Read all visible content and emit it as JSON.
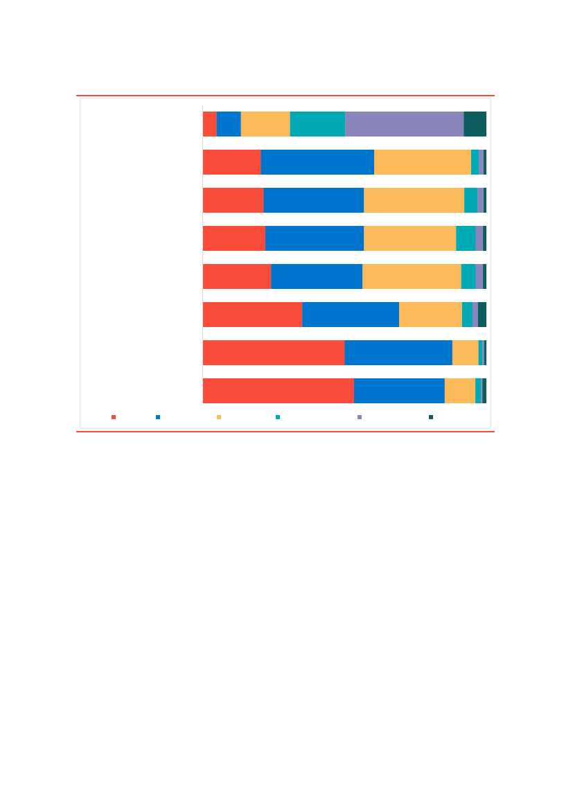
{
  "page": {
    "rule_color": "#f04e37",
    "background": "#ffffff"
  },
  "chart_data": {
    "type": "bar",
    "orientation": "horizontal",
    "stacked": true,
    "normalized": true,
    "title": "",
    "xlabel": "",
    "ylabel": "",
    "xlim": [
      0,
      100
    ],
    "grid": false,
    "legend_position": "bottom",
    "categories": [
      "",
      "",
      "",
      "",
      "",
      "",
      "",
      ""
    ],
    "series": [
      {
        "color": "#f94c3b",
        "values": [
          4.8,
          20.4,
          21.4,
          22.0,
          24.0,
          35.0,
          50.0,
          53.3
        ]
      },
      {
        "color": "#0075cd",
        "values": [
          8.6,
          40.0,
          35.4,
          34.8,
          32.3,
          34.2,
          38.0,
          32.0
        ]
      },
      {
        "color": "#fdba5a",
        "values": [
          17.3,
          34.2,
          35.4,
          32.5,
          34.8,
          22.2,
          9.2,
          10.8
        ]
      },
      {
        "color": "#00aab5",
        "values": [
          19.5,
          2.8,
          4.7,
          6.9,
          5.1,
          3.7,
          1.4,
          2.0
        ]
      },
      {
        "color": "#8a86bd",
        "values": [
          41.8,
          1.6,
          2.1,
          2.6,
          2.6,
          1.9,
          0.6,
          0.5
        ]
      },
      {
        "color": "#0c5e5e",
        "values": [
          8.0,
          1.0,
          1.0,
          1.2,
          1.2,
          3.0,
          0.8,
          1.4
        ]
      }
    ]
  }
}
